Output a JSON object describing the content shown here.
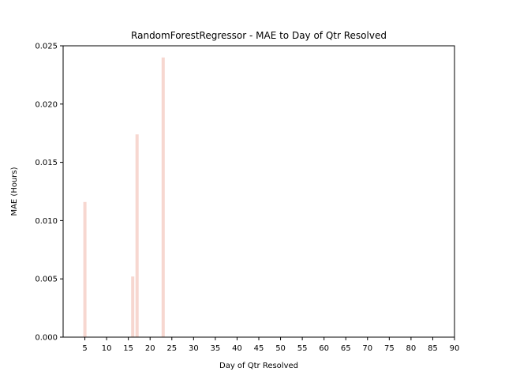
{
  "chart_data": {
    "type": "bar",
    "title": "RandomForestRegressor - MAE to Day of Qtr Resolved",
    "xlabel": "Day of Qtr Resolved",
    "ylabel": "MAE (Hours)",
    "xlim": [
      0,
      90
    ],
    "ylim": [
      0,
      0.025
    ],
    "xticks": [
      5,
      10,
      15,
      20,
      25,
      30,
      35,
      40,
      45,
      50,
      55,
      60,
      65,
      70,
      75,
      80,
      85,
      90
    ],
    "xtick_labels": [
      "5",
      "10",
      "15",
      "20",
      "25",
      "30",
      "35",
      "40",
      "45",
      "50",
      "55",
      "60",
      "65",
      "70",
      "75",
      "80",
      "85",
      "90"
    ],
    "yticks": [
      0,
      0.005,
      0.01,
      0.015,
      0.02,
      0.025
    ],
    "ytick_labels": [
      "0.000",
      "0.005",
      "0.010",
      "0.015",
      "0.020",
      "0.025"
    ],
    "bar_color": "#f4c6bc",
    "bar_opacity": 0.7,
    "grid": false,
    "legend": "none",
    "points": [
      {
        "x": 5,
        "y": 0.0116
      },
      {
        "x": 16,
        "y": 0.0052
      },
      {
        "x": 17,
        "y": 0.0174
      },
      {
        "x": 23,
        "y": 0.024
      }
    ]
  }
}
